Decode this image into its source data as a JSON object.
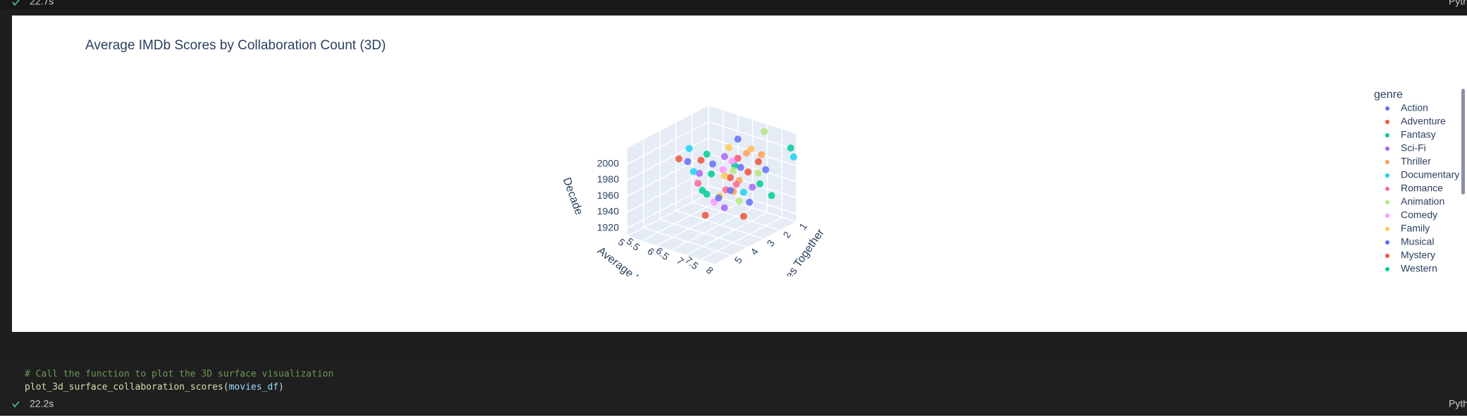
{
  "top_cell": {
    "time": "22.7s",
    "kernel": "Pyth"
  },
  "chart_data": {
    "type": "scatter3d",
    "title": "Average IMDb Scores by Collaboration Count (3D)",
    "xlabel": "Movies Together",
    "ylabel": "Average IMDb Score",
    "zlabel": "Decade",
    "legend_title": "genre",
    "xlim": [
      1,
      6
    ],
    "xticks": [
      1,
      2,
      3,
      4,
      5
    ],
    "ylim": [
      5,
      8
    ],
    "yticks": [
      5,
      5.5,
      6,
      6.5,
      7,
      7.5,
      8
    ],
    "zlim": [
      1910,
      2020
    ],
    "zticks": [
      1920,
      1940,
      1960,
      1980,
      2000
    ],
    "legend": "right",
    "series": [
      {
        "name": "Action",
        "color": "#636efa",
        "x": [
          3,
          4,
          2,
          5
        ],
        "y": [
          7.2,
          6.8,
          7.5,
          6.5
        ],
        "z": [
          1990,
          2000,
          1980,
          2010
        ]
      },
      {
        "name": "Adventure",
        "color": "#EF553B",
        "x": [
          2,
          4,
          3,
          5
        ],
        "y": [
          6.9,
          7.4,
          7.1,
          6.2
        ],
        "z": [
          1970,
          1990,
          2000,
          2010
        ]
      },
      {
        "name": "Fantasy",
        "color": "#00cc96",
        "x": [
          1,
          3,
          4,
          2
        ],
        "y": [
          7.8,
          7.0,
          6.6,
          7.3
        ],
        "z": [
          2000,
          1990,
          2010,
          1960
        ]
      },
      {
        "name": "Sci-Fi",
        "color": "#ab63fa",
        "x": [
          2,
          3,
          5,
          4
        ],
        "y": [
          6.1,
          7.6,
          6.9,
          7.2
        ],
        "z": [
          1980,
          1970,
          2000,
          1950
        ]
      },
      {
        "name": "Thriller",
        "color": "#FFA15A",
        "x": [
          3,
          2,
          4,
          1
        ],
        "y": [
          7.4,
          6.4,
          7.7,
          6.8
        ],
        "z": [
          2010,
          1940,
          1990,
          1980
        ]
      },
      {
        "name": "Documentary",
        "color": "#19d3f3",
        "x": [
          1,
          5,
          3,
          4
        ],
        "y": [
          7.9,
          6.7,
          7.3,
          6.0
        ],
        "z": [
          1990,
          2000,
          1960,
          2010
        ]
      },
      {
        "name": "Romance",
        "color": "#FF6692",
        "x": [
          2,
          3,
          4,
          5
        ],
        "y": [
          6.5,
          7.1,
          6.3,
          7.8
        ],
        "z": [
          1950,
          2000,
          1970,
          1990
        ]
      },
      {
        "name": "Animation",
        "color": "#B6E880",
        "x": [
          4,
          1,
          3,
          2
        ],
        "y": [
          7.5,
          6.9,
          7.8,
          6.6
        ],
        "z": [
          2000,
          2010,
          1990,
          1930
        ]
      },
      {
        "name": "Comedy",
        "color": "#FF97FF",
        "x": [
          1,
          3,
          2,
          5
        ],
        "y": [
          5.8,
          6.6,
          7.0,
          7.4
        ],
        "z": [
          1960,
          1980,
          2000,
          1970
        ]
      },
      {
        "name": "Family",
        "color": "#FECB52",
        "x": [
          3,
          4,
          5,
          2
        ],
        "y": [
          6.8,
          7.2,
          7.6,
          7.0
        ],
        "z": [
          2010,
          1990,
          1980,
          2000
        ]
      },
      {
        "name": "Musical",
        "color": "#636efa",
        "x": [
          2,
          4,
          3,
          1
        ],
        "y": [
          6.3,
          7.0,
          7.5,
          6.0
        ],
        "z": [
          1940,
          1960,
          1950,
          1990
        ]
      },
      {
        "name": "Mystery",
        "color": "#EF553B",
        "x": [
          5,
          3,
          1,
          4
        ],
        "y": [
          7.1,
          7.3,
          6.7,
          6.4
        ],
        "z": [
          1950,
          1930,
          1970,
          2000
        ]
      },
      {
        "name": "Western",
        "color": "#00cc96",
        "x": [
          4,
          2,
          3,
          5
        ],
        "y": [
          6.6,
          7.7,
          6.2,
          7.0
        ],
        "z": [
          1960,
          1950,
          1970,
          1980
        ]
      }
    ]
  },
  "code_cell": {
    "comment": "# Call the function to plot the 3D surface visualization",
    "function": "plot_3d_surface_collaboration_scores",
    "open": "(",
    "argument": "movies_df",
    "close": ")",
    "time": "22.2s",
    "kernel": "Pyth"
  }
}
